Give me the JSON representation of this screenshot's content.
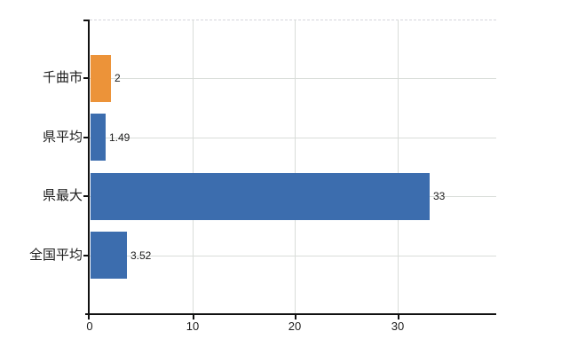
{
  "chart_data": {
    "type": "bar",
    "orientation": "horizontal",
    "title": "",
    "xlabel": "",
    "ylabel": "",
    "categories": [
      "千曲市",
      "県平均",
      "県最大",
      "全国平均"
    ],
    "values": [
      2,
      1.49,
      33,
      3.52
    ],
    "value_labels": [
      "2",
      "1.49",
      "33",
      "3.52"
    ],
    "series": [
      {
        "name": "",
        "values": [
          2,
          1.49,
          33,
          3.52
        ],
        "bar_colors": [
          "#EC9339",
          "#3C6DAE",
          "#3C6DAE",
          "#3C6DAE"
        ]
      }
    ],
    "xlim": [
      0,
      39.6
    ],
    "x_ticks": [
      0,
      10,
      20,
      30
    ],
    "x_tick_labels": [
      "0",
      "10",
      "20",
      "30"
    ],
    "grid": true,
    "grid_horizontal_at_category_centers": true,
    "top_border_style": "dashed",
    "legend": false
  },
  "colors": {
    "bar_highlight": "#EC9339",
    "bar_default": "#3C6DAE",
    "axis": "#111111",
    "grid": "#d9ddd9",
    "text": "#1c1c1c",
    "background": "#ffffff"
  }
}
